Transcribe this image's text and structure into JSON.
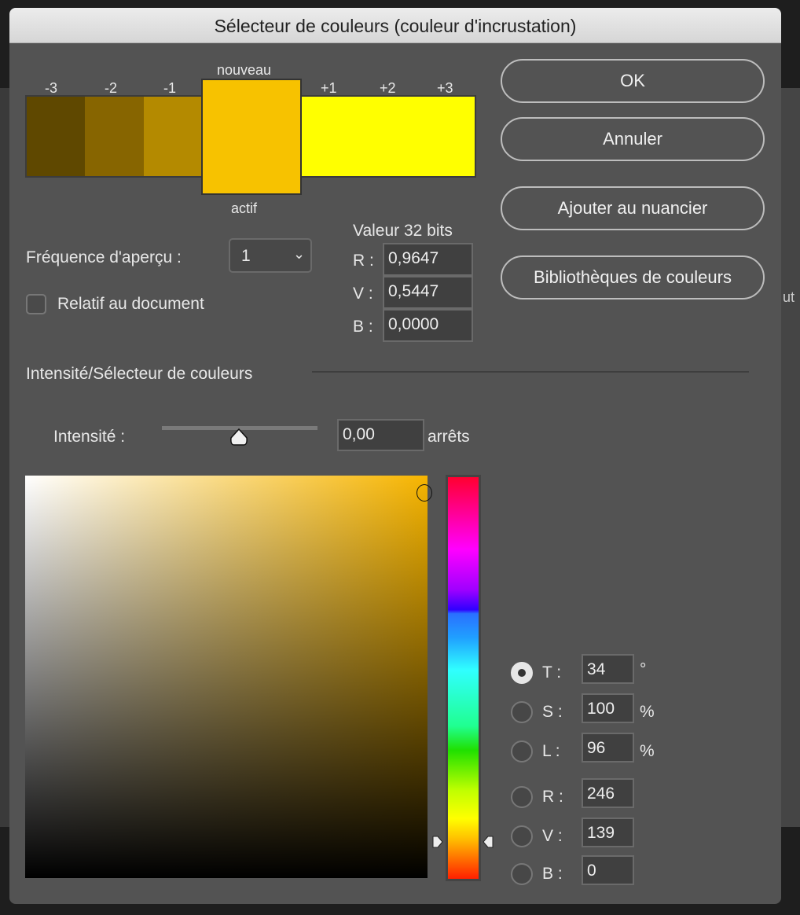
{
  "dialog": {
    "title": "Sélecteur de couleurs (couleur d'incrustation)"
  },
  "background": {
    "fragment": "ut"
  },
  "swatches": {
    "labels": [
      "-3",
      "-2",
      "-1",
      "+1",
      "+2",
      "+3"
    ],
    "new_label": "nouveau",
    "current_label": "actif",
    "colors": {
      "m3": "#5f4800",
      "m2": "#876500",
      "m1": "#b48a00",
      "new": "#f7c200",
      "p1": "#ffff00",
      "p2": "#ffff00",
      "p3": "#ffff00"
    }
  },
  "buttons": {
    "ok": "OK",
    "cancel": "Annuler",
    "add_swatch": "Ajouter au nuancier",
    "libraries": "Bibliothèques de couleurs"
  },
  "preview": {
    "label": "Fréquence d'aperçu :",
    "value": "1"
  },
  "relative": {
    "label": "Relatif au document",
    "checked": false
  },
  "bits32": {
    "title": "Valeur 32 bits",
    "r_label": "R :",
    "r": "0,9647",
    "v_label": "V :",
    "v": "0,5447",
    "b_label": "B :",
    "b": "0,0000"
  },
  "section": {
    "title": "Intensité/Sélecteur de couleurs"
  },
  "intensity": {
    "label": "Intensité :",
    "value": "0,00",
    "unit": "arrêts",
    "slider_fraction": 0.5
  },
  "picker": {
    "hue_color": "#f7b500"
  },
  "hsl": [
    {
      "label": "T :",
      "value": "34",
      "unit": "°",
      "selected": true
    },
    {
      "label": "S :",
      "value": "100",
      "unit": "%",
      "selected": false
    },
    {
      "label": "L :",
      "value": "96",
      "unit": "%",
      "selected": false
    },
    {
      "label": "R :",
      "value": "246",
      "unit": "",
      "selected": false
    },
    {
      "label": "V :",
      "value": "139",
      "unit": "",
      "selected": false
    },
    {
      "label": "B :",
      "value": "0",
      "unit": "",
      "selected": false
    }
  ]
}
